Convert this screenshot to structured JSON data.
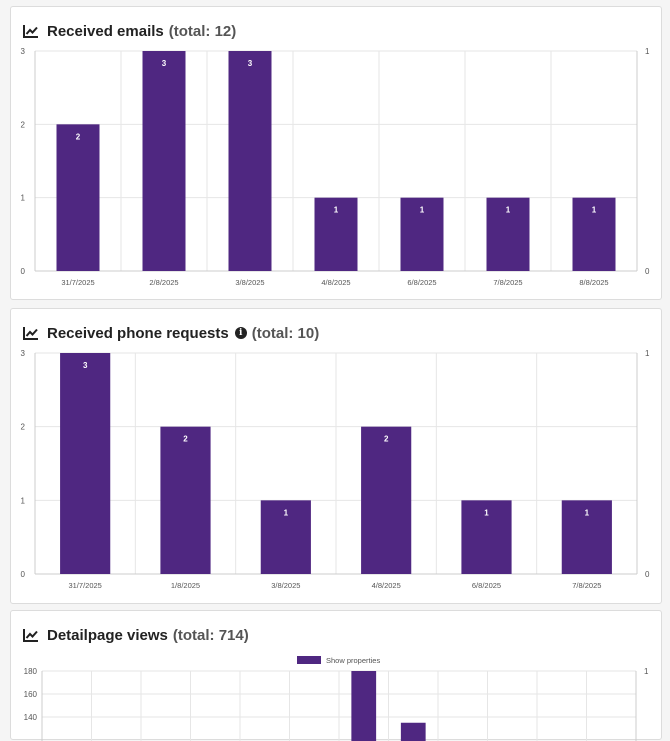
{
  "colors": {
    "bar": "#4f2781",
    "grid": "#e6e6e6",
    "axis": "#cccccc",
    "tick": "#555555",
    "label": "#ffffff"
  },
  "cards": [
    {
      "title": "Received emails",
      "total": "(total: 12)",
      "icon": "trend-chart-icon"
    },
    {
      "title": "Received phone requests",
      "total": "(total: 10)",
      "icon": "trend-chart-icon",
      "info_icon": "info-icon"
    },
    {
      "title": "Detailpage views",
      "total": "(total: 714)",
      "icon": "trend-chart-icon"
    }
  ],
  "chart_data": [
    {
      "type": "bar",
      "categories": [
        "31/7/2025",
        "2/8/2025",
        "3/8/2025",
        "4/8/2025",
        "6/8/2025",
        "7/8/2025",
        "8/8/2025"
      ],
      "values": [
        2,
        3,
        3,
        1,
        1,
        1,
        1
      ],
      "ylim": [
        0,
        3
      ],
      "yticks": [
        0,
        1,
        2,
        3
      ],
      "y2ticks": [
        0,
        1
      ],
      "data_labels": true
    },
    {
      "type": "bar",
      "categories": [
        "31/7/2025",
        "1/8/2025",
        "3/8/2025",
        "4/8/2025",
        "6/8/2025",
        "7/8/2025"
      ],
      "values": [
        3,
        2,
        1,
        2,
        1,
        1
      ],
      "ylim": [
        0,
        3
      ],
      "yticks": [
        0,
        1,
        2,
        3
      ],
      "y2ticks": [
        0,
        1
      ],
      "data_labels": true
    },
    {
      "type": "bar",
      "legend": "Show properties",
      "legend_position": "top-center",
      "yticks": [
        140,
        160,
        180
      ],
      "y2ticks": [
        1
      ],
      "ylim_visible": [
        140,
        180
      ],
      "column_count": 12,
      "visible_bars": [
        {
          "column": 6,
          "value": 180
        },
        {
          "column": 7,
          "value": 135
        }
      ]
    }
  ]
}
